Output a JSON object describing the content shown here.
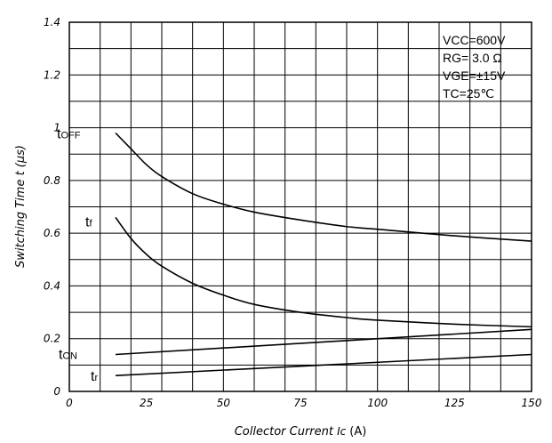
{
  "chart_data": {
    "type": "line",
    "xlabel_main": "Collector Current ",
    "xlabel_var": "Ic",
    "xlabel_unit": "(A)",
    "ylabel": "Switching Time t (μs)",
    "xlim": [
      0,
      150
    ],
    "ylim": [
      0,
      1.4
    ],
    "x_ticks": [
      "0",
      "25",
      "50",
      "75",
      "100",
      "125",
      "150"
    ],
    "y_ticks": [
      "0",
      "0.2",
      "0.4",
      "0.6",
      "0.8",
      "1",
      "1.2",
      "1.4"
    ],
    "grid": true,
    "conditions": {
      "vcc": "VCC=600V",
      "rg": "RG= 3.0 Ω",
      "vge": "VGE=±15V",
      "tc": "TC=25℃"
    },
    "series": [
      {
        "name": "tOFF",
        "label_main": "t",
        "label_sub": "OFF",
        "x": [
          15,
          20,
          25,
          30,
          40,
          50,
          60,
          75,
          90,
          100,
          125,
          150
        ],
        "y": [
          0.98,
          0.92,
          0.86,
          0.815,
          0.75,
          0.71,
          0.68,
          0.65,
          0.625,
          0.615,
          0.59,
          0.57
        ]
      },
      {
        "name": "tf",
        "label_main": "t",
        "label_sub": "f",
        "x": [
          15,
          20,
          25,
          30,
          40,
          50,
          60,
          75,
          90,
          100,
          125,
          150
        ],
        "y": [
          0.66,
          0.58,
          0.52,
          0.475,
          0.41,
          0.365,
          0.33,
          0.3,
          0.28,
          0.27,
          0.255,
          0.245
        ]
      },
      {
        "name": "tON",
        "label_main": "t",
        "label_sub": "ON",
        "x": [
          15,
          150
        ],
        "y": [
          0.14,
          0.235
        ]
      },
      {
        "name": "tr",
        "label_main": "t",
        "label_sub": "r",
        "x": [
          15,
          150
        ],
        "y": [
          0.06,
          0.14
        ]
      }
    ]
  }
}
